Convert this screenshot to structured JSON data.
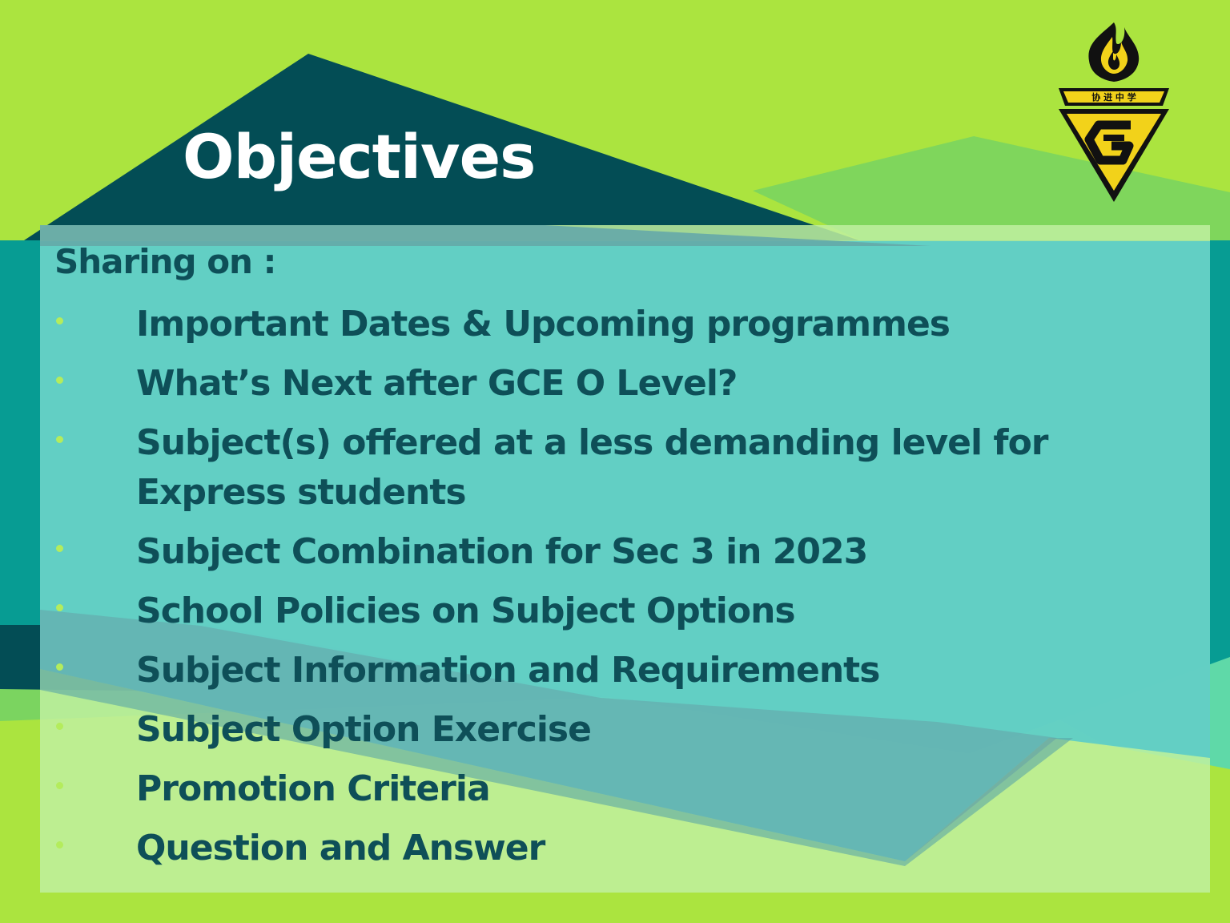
{
  "slide": {
    "title": "Objectives",
    "intro": "Sharing on :",
    "items": [
      "Important Dates & Upcoming programmes",
      "What’s Next after GCE O Level?",
      "Subject(s) offered at a less demanding level for Express students",
      "Subject Combination for Sec 3 in 2023",
      "School Policies on Subject Options",
      "Subject Information and Requirements",
      "Subject Option Exercise",
      "Promotion Criteria",
      "Question and Answer"
    ],
    "logo": {
      "icon": "school-crest-flame-icon",
      "text": "协 进 中 学",
      "colors": {
        "gold": "#f2d21a",
        "black": "#111111"
      }
    },
    "colors": {
      "background": "#abe43f",
      "dark_teal": "#034d55",
      "panel": "#5ecdc5",
      "text": "#0e4f58",
      "title": "#ffffff",
      "bullet": "#b4ec5c"
    }
  }
}
